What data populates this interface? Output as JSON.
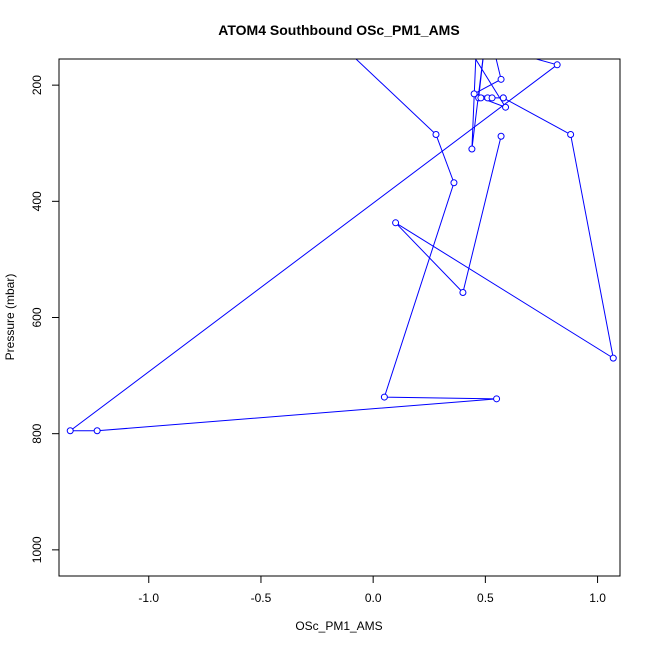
{
  "chart_data": {
    "type": "line",
    "title": "ATOM4 Southbound OSc_PM1_AMS",
    "xlabel": "OSc_PM1_AMS",
    "ylabel": "Pressure (mbar)",
    "xlim": [
      -1.4,
      1.1
    ],
    "ylim": [
      1045,
      155
    ],
    "y_reversed": true,
    "x_ticks": [
      -1.0,
      -0.5,
      0.0,
      0.5,
      1.0
    ],
    "x_tick_labels": [
      "-1.0",
      "-0.5",
      "0.0",
      "0.5",
      "1.0"
    ],
    "y_ticks": [
      200,
      400,
      600,
      800,
      1000
    ],
    "y_tick_labels": [
      "200",
      "400",
      "600",
      "800",
      "1000"
    ],
    "grid": false,
    "legend": "none",
    "series": [
      {
        "color": "#0000ff",
        "marker": "open-circle",
        "points": [
          {
            "x": 0.46,
            "y": 130
          },
          {
            "x": 0.44,
            "y": 310
          },
          {
            "x": 0.5,
            "y": 120
          },
          {
            "x": 0.47,
            "y": 222
          },
          {
            "x": 0.58,
            "y": 222
          },
          {
            "x": 0.51,
            "y": 222
          },
          {
            "x": 0.53,
            "y": 222
          },
          {
            "x": 0.45,
            "y": 215
          },
          {
            "x": 0.57,
            "y": 190
          },
          {
            "x": 0.52,
            "y": 110
          },
          {
            "x": -0.2,
            "y": 110
          },
          {
            "x": 0.28,
            "y": 285
          },
          {
            "x": 0.36,
            "y": 368
          },
          {
            "x": 0.05,
            "y": 737
          },
          {
            "x": 0.55,
            "y": 740
          },
          {
            "x": -1.23,
            "y": 795
          },
          {
            "x": -1.35,
            "y": 795
          },
          {
            "x": 0.82,
            "y": 165
          },
          {
            "x": 0.4,
            "y": 120
          },
          {
            "x": 0.59,
            "y": 238
          },
          {
            "x": 0.48,
            "y": 222
          },
          {
            "x": 0.58,
            "y": 222
          },
          {
            "x": 0.88,
            "y": 285
          },
          {
            "x": 1.07,
            "y": 670
          },
          {
            "x": 0.1,
            "y": 437
          },
          {
            "x": 0.4,
            "y": 557
          },
          {
            "x": 0.57,
            "y": 288
          }
        ]
      }
    ]
  }
}
